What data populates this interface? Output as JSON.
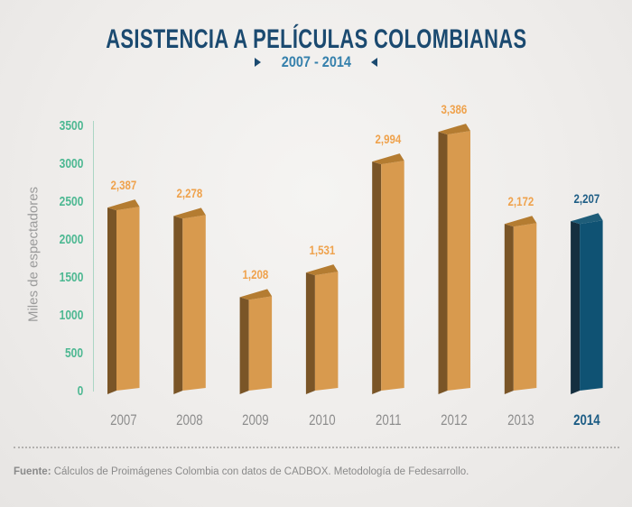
{
  "header": {
    "title": "ASISTENCIA A PELÍCULAS COLOMBIANAS",
    "subtitle": "2007 - 2014"
  },
  "footer": {
    "source_label": "Fuente:",
    "source_text": "Cálculos de Proimágenes Colombia con datos de CADBOX. Metodología de Fedesarrollo."
  },
  "chart_data": {
    "type": "bar",
    "title": "ASISTENCIA A PELÍCULAS COLOMBIANAS",
    "subtitle": "2007 - 2014",
    "ylabel": "Miles de espectadores",
    "xlabel": "",
    "categories": [
      "2007",
      "2008",
      "2009",
      "2010",
      "2011",
      "2012",
      "2013",
      "2014"
    ],
    "values": [
      2387,
      2278,
      1208,
      1531,
      2994,
      3386,
      2172,
      2207
    ],
    "value_labels": [
      "2,387",
      "2,278",
      "1,208",
      "1,531",
      "2,994",
      "3,386",
      "2,172",
      "2,207"
    ],
    "ylim": [
      0,
      3500
    ],
    "yticks": [
      0,
      500,
      1000,
      1500,
      2000,
      2500,
      3000,
      3500
    ],
    "grid": false,
    "legend": "none",
    "highlight_index": 7,
    "colors": {
      "bar_front": "#d89a4e",
      "bar_side": "#7a5527",
      "bar_top": "#b47c31",
      "highlight_front": "#0f5273",
      "highlight_side": "#152f3f",
      "highlight_top": "#1e5d79",
      "value_label": "#efa24c",
      "highlight_value_label": "#1d5d85",
      "category_label": "#8d8d8d",
      "highlight_category_label": "#1d5d85",
      "tick_label": "#4db892",
      "axis_line": "#abd6c4",
      "title": "#1b4a70",
      "subtitle": "#3580ac"
    }
  }
}
